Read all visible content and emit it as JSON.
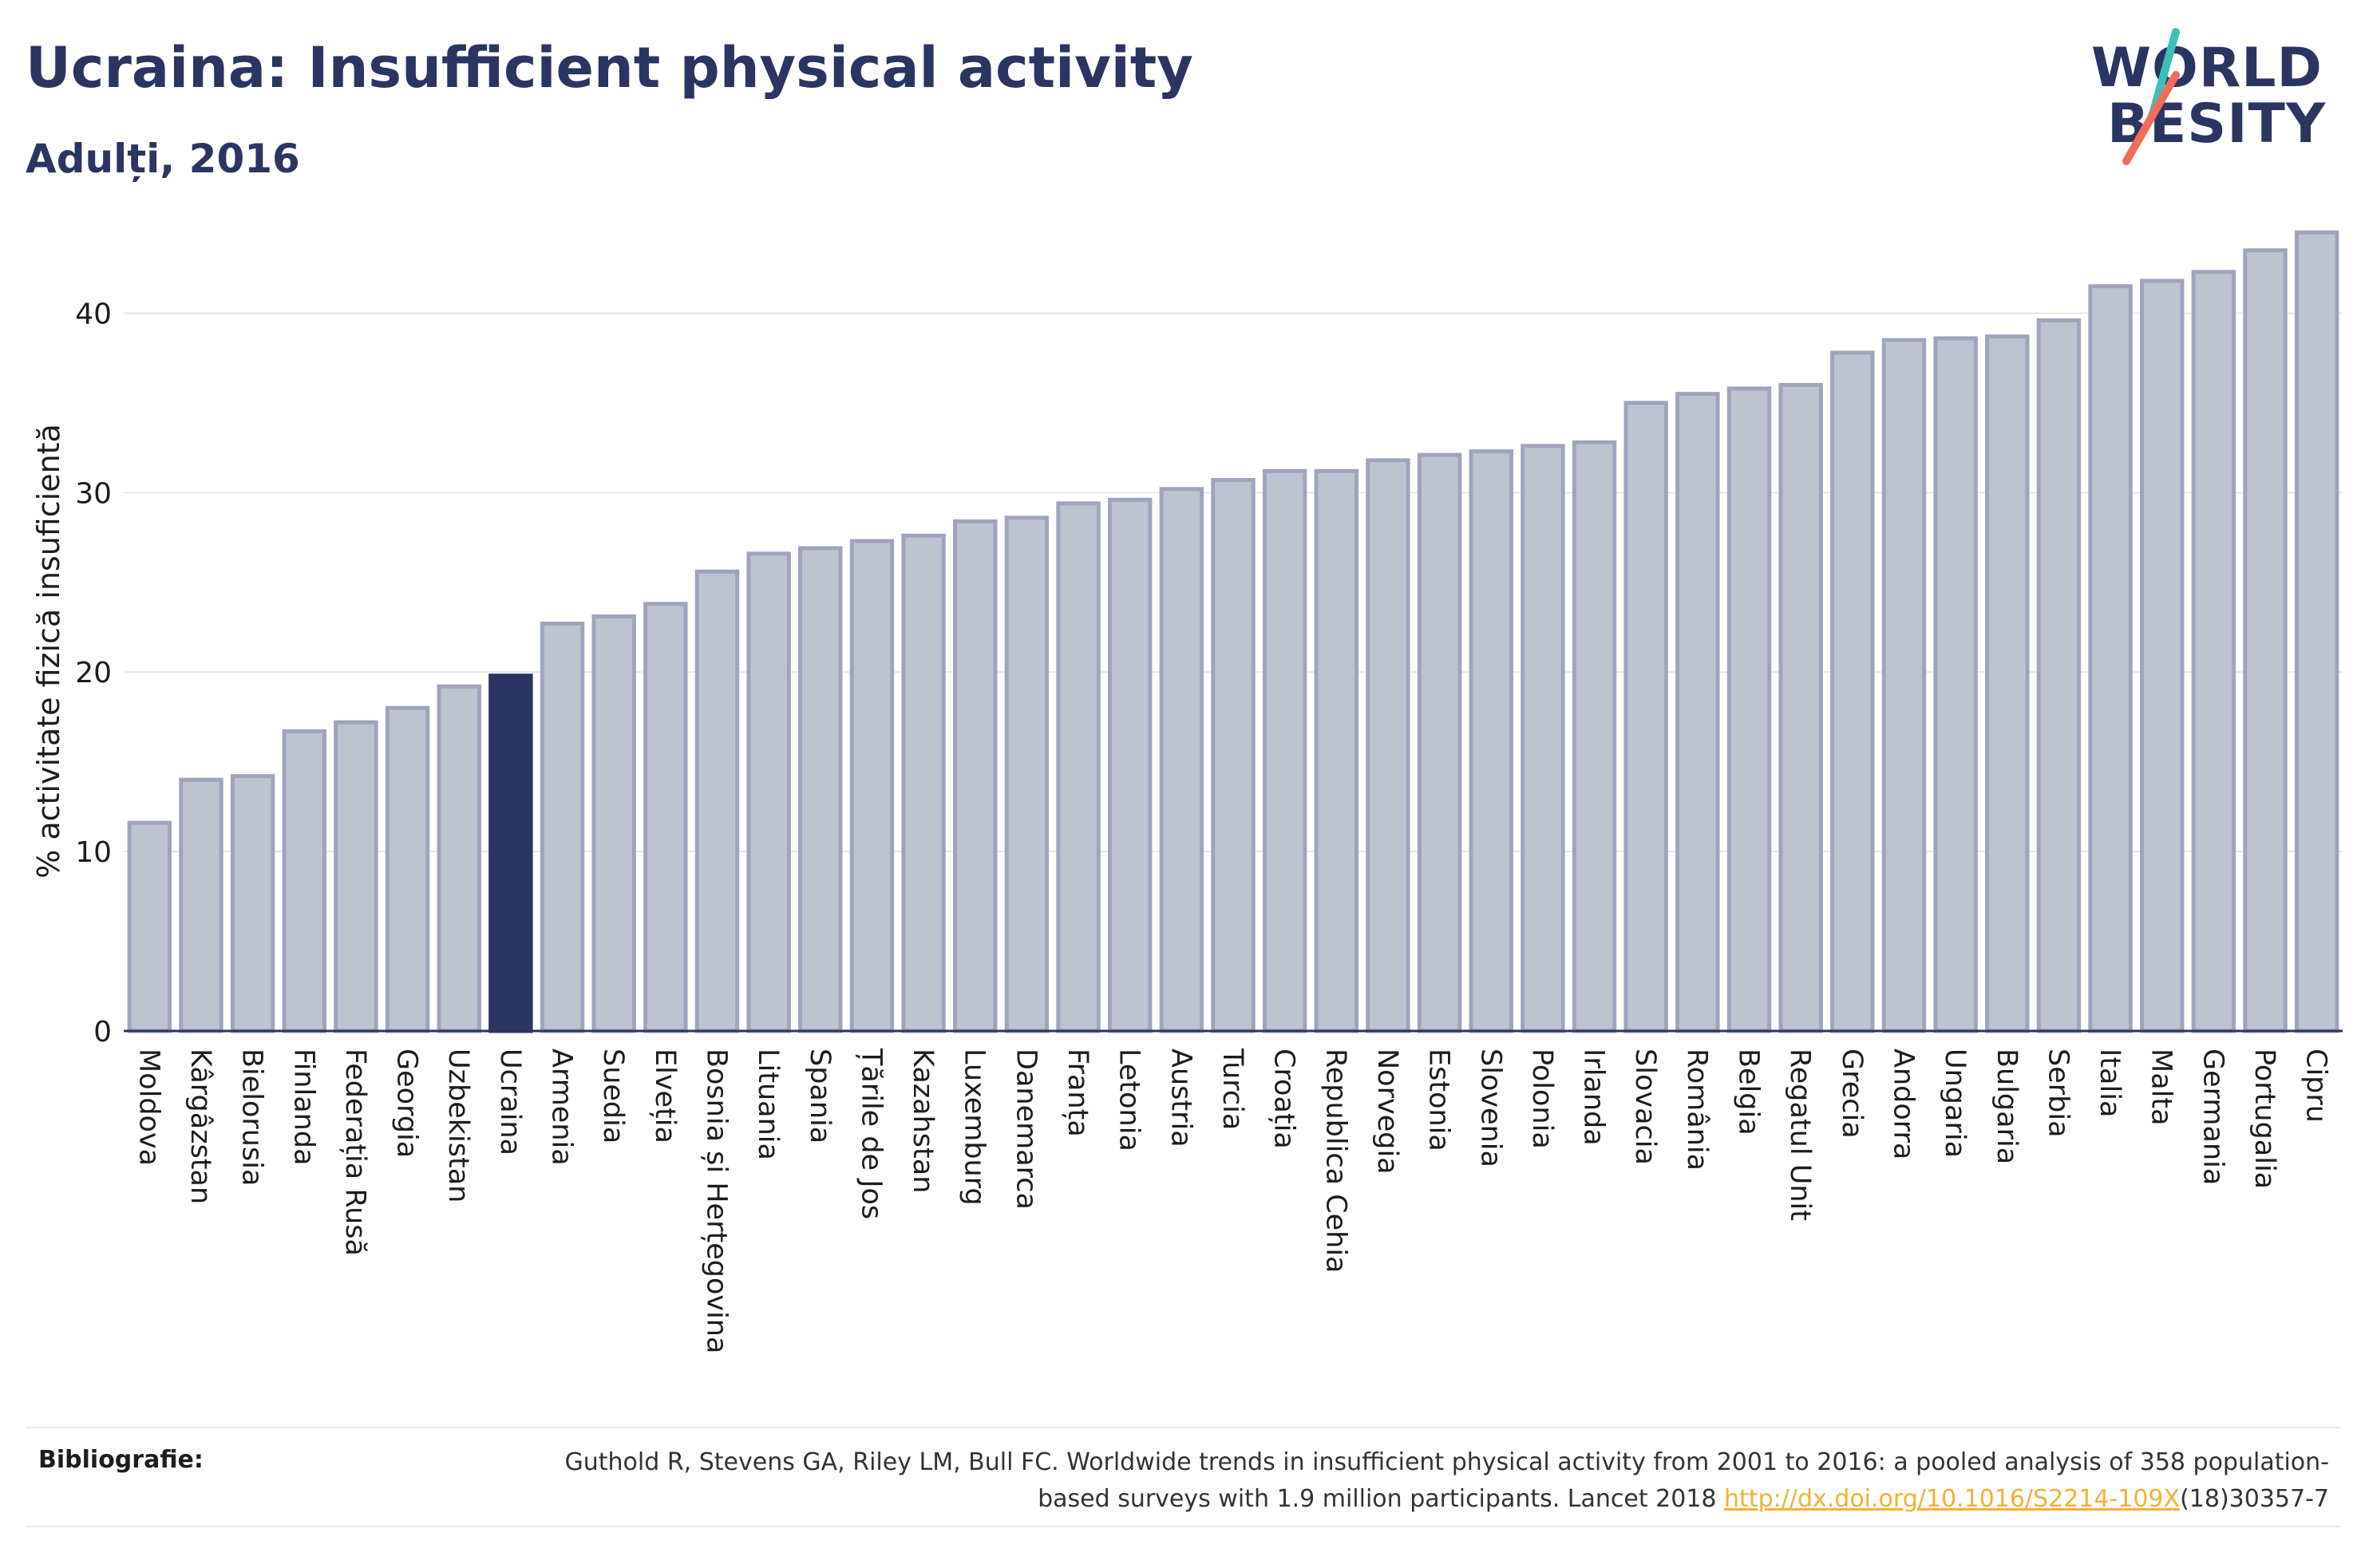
{
  "header": {
    "title": "Ucraina: Insufficient physical activity",
    "subtitle": "Adulți, 2016"
  },
  "logo": {
    "line1": "WORLD",
    "line2": "BESITY",
    "colors": {
      "text": "#2b3562",
      "slash_top": "#3cbfb7",
      "slash_bottom": "#ee6e5a"
    }
  },
  "chart_data": {
    "type": "bar",
    "title": "",
    "xlabel": "",
    "ylabel": "% activitate fizică insuficientă",
    "ylim": [
      0,
      45
    ],
    "yticks": [
      0,
      10,
      20,
      30,
      40
    ],
    "grid": true,
    "highlight": "Ucraina",
    "colors": {
      "bar": "#bfc3d0",
      "bar_border": "#9fa4bd",
      "highlight": "#2b3562",
      "grid": "#e6e6ea",
      "axis": "#2b3562"
    },
    "categories": [
      "Moldova",
      "Kârgâzstan",
      "Bielorusia",
      "Finlanda",
      "Federația Rusă",
      "Georgia",
      "Uzbekistan",
      "Ucraina",
      "Armenia",
      "Suedia",
      "Elveția",
      "Bosnia și Herțegovina",
      "Lituania",
      "Spania",
      "Țările de Jos",
      "Kazahstan",
      "Luxemburg",
      "Danemarca",
      "Franța",
      "Letonia",
      "Austria",
      "Turcia",
      "Croația",
      "Republica Cehia",
      "Norvegia",
      "Estonia",
      "Slovenia",
      "Polonia",
      "Irlanda",
      "Slovacia",
      "România",
      "Belgia",
      "Regatul Unit",
      "Grecia",
      "Andorra",
      "Ungaria",
      "Bulgaria",
      "Serbia",
      "Italia",
      "Malta",
      "Germania",
      "Portugalia",
      "Cipru"
    ],
    "values": [
      11.6,
      14.0,
      14.2,
      16.7,
      17.2,
      18.0,
      19.2,
      19.8,
      22.7,
      23.1,
      23.8,
      25.6,
      26.6,
      26.9,
      27.3,
      27.6,
      28.4,
      28.6,
      29.4,
      29.6,
      30.2,
      30.7,
      31.2,
      31.2,
      31.8,
      32.1,
      32.3,
      32.6,
      32.8,
      35.0,
      35.5,
      35.8,
      36.0,
      37.8,
      38.5,
      38.6,
      38.7,
      39.6,
      41.5,
      41.8,
      42.3,
      43.5,
      44.5
    ]
  },
  "references": {
    "label": "Bibliografie:",
    "text_before": "Guthold R, Stevens GA, Riley LM, Bull FC. Worldwide trends in insufficient physical activity from 2001 to 2016: a pooled analysis of 358 population-based surveys with 1.9 million participants. Lancet 2018 ",
    "link": "http://dx.doi.org/10.1016/S2214-109X",
    "text_after": "(18)30357-7"
  }
}
